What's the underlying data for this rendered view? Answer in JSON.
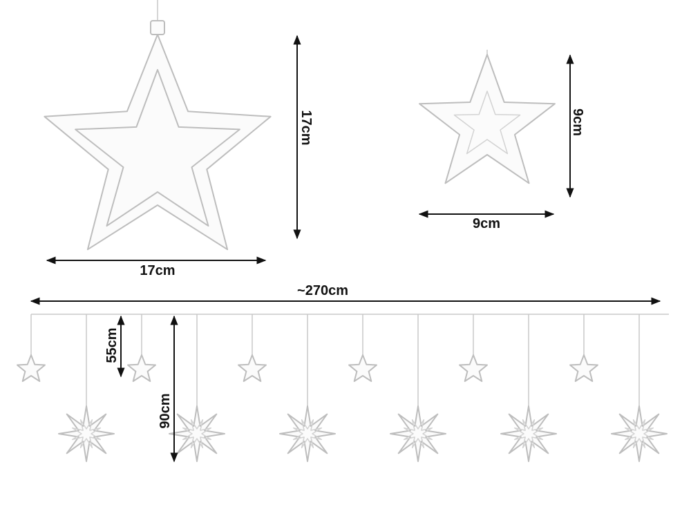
{
  "large_star": {
    "height_label": "17cm",
    "width_label": "17cm"
  },
  "small_star": {
    "height_label": "9cm",
    "width_label": "9cm"
  },
  "curtain": {
    "length_label": "~270cm",
    "short_drop_label": "55cm",
    "long_drop_label": "90cm"
  },
  "colors": {
    "dimension_line": "#111111",
    "star_outline": "#bdbdbd"
  }
}
